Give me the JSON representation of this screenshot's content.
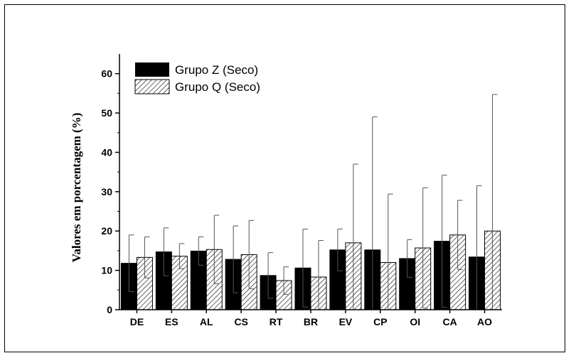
{
  "chart_data": {
    "type": "bar",
    "categories": [
      "DE",
      "ES",
      "AL",
      "CS",
      "RT",
      "BR",
      "EV",
      "CP",
      "OI",
      "CA",
      "AO"
    ],
    "series": [
      {
        "name": "Grupo Z (Seco)",
        "fill": "solid-black",
        "values": [
          11.8,
          14.7,
          14.9,
          12.8,
          8.7,
          10.6,
          15.2,
          15.2,
          13.0,
          17.4,
          13.4
        ],
        "error_upper": [
          19.0,
          20.8,
          18.5,
          21.3,
          14.5,
          20.5,
          20.5,
          49.0,
          17.8,
          34.2,
          31.5
        ],
        "error_lower": [
          4.6,
          8.6,
          11.3,
          4.3,
          2.9,
          0.7,
          9.9,
          0,
          8.2,
          0.6,
          0
        ]
      },
      {
        "name": "Grupo Q (Seco)",
        "fill": "diagonal-hatch",
        "values": [
          13.3,
          13.6,
          15.3,
          14.0,
          7.4,
          8.3,
          17.0,
          12.0,
          15.7,
          19.0,
          20.0
        ],
        "error_upper": [
          18.5,
          16.8,
          24.0,
          22.7,
          10.9,
          17.6,
          37.0,
          29.4,
          31.0,
          27.8,
          54.7
        ],
        "error_lower": [
          8.1,
          10.4,
          6.6,
          5.3,
          3.9,
          0,
          0,
          0,
          0.4,
          10.2,
          0
        ]
      }
    ],
    "ylabel": "Valores em porcentagem (%)",
    "xlabel": "",
    "ylim": [
      0,
      65
    ],
    "yticks": [
      0,
      10,
      20,
      30,
      40,
      50,
      60
    ],
    "grid": false,
    "legend_position": "top-left"
  },
  "colors": {
    "bar_fill": "#000000",
    "hatch_stroke": "#000000",
    "background": "#ffffff"
  }
}
